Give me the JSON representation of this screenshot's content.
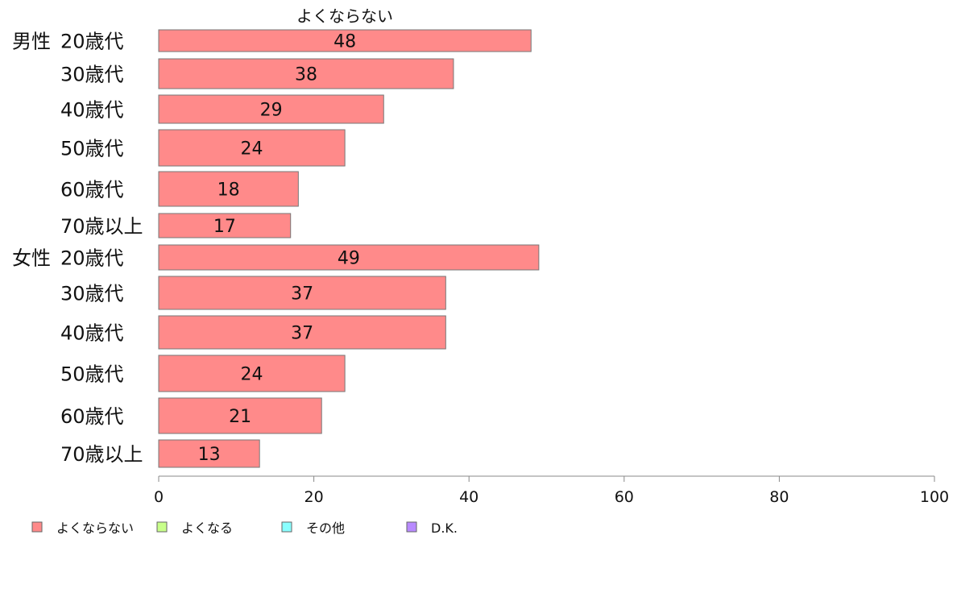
{
  "chart_data": {
    "type": "bar",
    "orientation": "horizontal",
    "stacked": true,
    "title": "よくならない",
    "groups": [
      {
        "name": "男性",
        "categories": [
          "20歳代",
          "30歳代",
          "40歳代",
          "50歳代",
          "60歳代",
          "70歳以上"
        ]
      },
      {
        "name": "女性",
        "categories": [
          "20歳代",
          "30歳代",
          "40歳代",
          "50歳代",
          "60歳代",
          "70歳以上"
        ]
      }
    ],
    "series": [
      {
        "name": "よくならない",
        "color": "#ff8a8a",
        "values": [
          48,
          38,
          29,
          24,
          18,
          17,
          49,
          37,
          37,
          24,
          21,
          13
        ]
      },
      {
        "name": "よくなる",
        "color": "#c8ff8a",
        "values": []
      },
      {
        "name": "その他",
        "color": "#8affff",
        "values": []
      },
      {
        "name": "D.K.",
        "color": "#b88aff",
        "values": []
      }
    ],
    "xlim": [
      0,
      100
    ],
    "xticks": [
      0,
      20,
      40,
      60,
      80,
      100
    ],
    "grid": false,
    "legend_position": "bottom"
  }
}
